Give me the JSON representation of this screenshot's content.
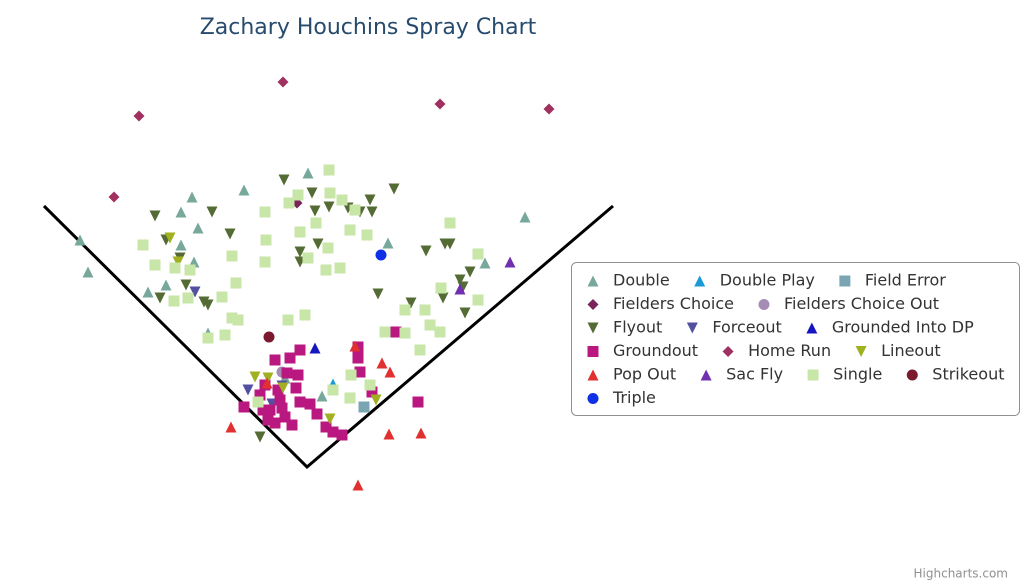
{
  "chart_data": {
    "type": "scatter",
    "title": "Zachary Houchins Spray Chart",
    "credits": "Highcharts.com",
    "xlim": [
      -307,
      307
    ],
    "ylim": [
      -118,
      467
    ],
    "legend": "right",
    "series": [
      {
        "name": "Double",
        "color": "#78a89c",
        "marker": "triangle",
        "x": [
          -227,
          -219,
          -115,
          -63,
          1,
          -126,
          -109,
          -126,
          -141,
          -159,
          -113,
          81,
          178,
          218,
          -99,
          15,
          -22
        ],
        "values": [
          227,
          195,
          270,
          277,
          294,
          255,
          239,
          222,
          182,
          175,
          205,
          224,
          204,
          250,
          134,
          71,
          89
        ]
      },
      {
        "name": "Double Play",
        "color": "#1a9bd7",
        "marker": "triangle",
        "x": [
          26
        ],
        "values": [
          83
        ]
      },
      {
        "name": "Field Error",
        "color": "#7aa6b3",
        "marker": "square",
        "x": [
          57
        ],
        "values": [
          60
        ]
      },
      {
        "name": "Fielders Choice",
        "color": "#7b2459",
        "marker": "diamond",
        "x": [
          -10
        ],
        "values": [
          264
        ]
      },
      {
        "name": "Fielders Choice Out",
        "color": "#a48cb5",
        "marker": "circle",
        "x": [
          -25
        ],
        "values": [
          95
        ]
      },
      {
        "name": "Flyout",
        "color": "#556b35",
        "marker": "triangle-down",
        "x": [
          -152,
          -95,
          -77,
          -141,
          -127,
          -147,
          -121,
          -103,
          -99,
          -23,
          5,
          22,
          8,
          11,
          -7,
          41,
          53,
          65,
          63,
          87,
          47,
          119,
          138,
          143,
          163,
          153,
          156,
          71,
          104,
          136,
          158,
          -7,
          -47
        ],
        "values": [
          251,
          255,
          233,
          227,
          209,
          169,
          182,
          165,
          162,
          287,
          274,
          260,
          256,
          223,
          215,
          259,
          255,
          255,
          267,
          278,
          257,
          216,
          223,
          223,
          195,
          187,
          180,
          173,
          164,
          169,
          154,
          205,
          30
        ]
      },
      {
        "name": "Forceout",
        "color": "#5450a0",
        "marker": "triangle-down",
        "x": [
          -112,
          -59,
          -25,
          -35
        ],
        "values": [
          175,
          77,
          81,
          63
        ]
      },
      {
        "name": "Grounded Into DP",
        "color": "#1616c0",
        "marker": "triangle",
        "x": [
          8
        ],
        "values": [
          119
        ]
      },
      {
        "name": "Groundout",
        "color": "#b8187f",
        "marker": "square",
        "x": [
          89,
          51,
          51,
          53,
          65,
          35,
          26,
          19,
          111,
          -7,
          -17,
          -32,
          -20,
          -11,
          -7,
          -27,
          -37,
          -47,
          -63,
          -15,
          -22,
          -32,
          -39,
          -44,
          -29,
          -9,
          3,
          10,
          -25,
          -42
        ],
        "values": [
          135,
          120,
          109,
          95,
          75,
          32,
          35,
          40,
          65,
          117,
          109,
          107,
          94,
          79,
          65,
          67,
          57,
          72,
          60,
          42,
          50,
          44,
          47,
          57,
          77,
          92,
          63,
          53,
          59,
          82
        ]
      },
      {
        "name": "Home Run",
        "color": "#a03060",
        "marker": "diamond",
        "x": [
          -24,
          -168,
          133,
          242,
          -193
        ],
        "values": [
          385,
          351,
          363,
          358,
          270
        ]
      },
      {
        "name": "Lineout",
        "color": "#a0b020",
        "marker": "triangle-down",
        "x": [
          -137,
          -52,
          -39,
          23,
          69,
          -24,
          -129
        ],
        "values": [
          229,
          90,
          89,
          48,
          67,
          79,
          205
        ]
      },
      {
        "name": "Pop Out",
        "color": "#e03030",
        "marker": "triangle",
        "x": [
          -76,
          51,
          82,
          114,
          75,
          83,
          48,
          -40
        ],
        "values": [
          40,
          -18,
          33,
          34,
          104,
          95,
          121,
          84
        ]
      },
      {
        "name": "Sac Fly",
        "color": "#7030b0",
        "marker": "triangle",
        "x": [
          203,
          153
        ],
        "values": [
          205,
          178
        ]
      },
      {
        "name": "Single",
        "color": "#c8e6a8",
        "marker": "square",
        "x": [
          22,
          -9,
          -18,
          23,
          9,
          35,
          48,
          -42,
          -41,
          -42,
          -75,
          -71,
          -85,
          -132,
          -117,
          -152,
          -164,
          -133,
          -119,
          -99,
          -82,
          -75,
          -69,
          -19,
          -2,
          -7,
          43,
          19,
          33,
          1,
          21,
          60,
          143,
          171,
          171,
          134,
          118,
          98,
          123,
          133,
          113,
          98,
          78,
          44,
          43,
          63,
          -49,
          26
        ],
        "values": [
          297,
          272,
          264,
          274,
          244,
          267,
          257,
          255,
          227,
          205,
          211,
          184,
          170,
          199,
          197,
          202,
          222,
          166,
          169,
          129,
          132,
          149,
          147,
          147,
          152,
          235,
          237,
          197,
          199,
          209,
          219,
          232,
          244,
          213,
          167,
          179,
          157,
          157,
          142,
          135,
          117,
          134,
          135,
          92,
          69,
          82,
          65,
          77
        ]
      },
      {
        "name": "Strikeout",
        "color": "#7b1a2e",
        "marker": "circle",
        "x": [
          -38
        ],
        "values": [
          130
        ]
      },
      {
        "name": "Triple",
        "color": "#1030e8",
        "marker": "circle",
        "x": [
          74
        ],
        "values": [
          212
        ]
      }
    ]
  }
}
